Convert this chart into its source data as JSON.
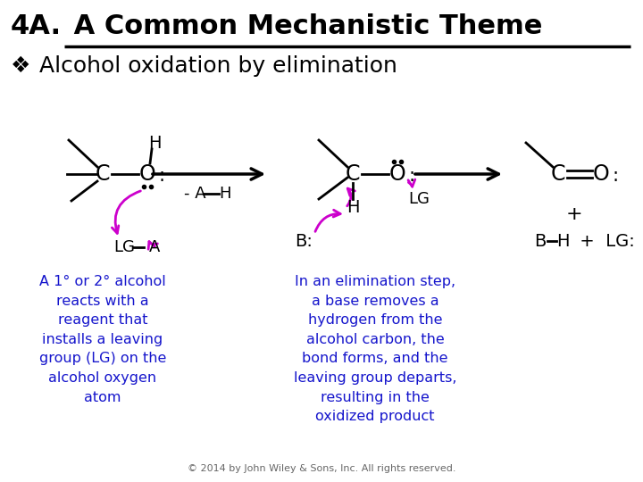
{
  "title_bold": "4A.",
  "title_underline": " A Common Mechanistic Theme",
  "subtitle_bullet": "❖",
  "subtitle_text": " Alcohol oxidation by elimination",
  "text_color_blue": "#1515CC",
  "text_color_black": "#000000",
  "text_color_magenta": "#CC00CC",
  "bg_color": "#FFFFFF",
  "caption1": "A 1° or 2° alcohol\nreacts with a\nreagent that\ninstalls a leaving\ngroup (LG) on the\nalcohol oxygen\natom",
  "caption2": "In an elimination step,\na base removes a\nhydrogen from the\nalcohol carbon, the\nbond forms, and the\nleaving group departs,\nresulting in the\noxidized product",
  "copyright": "© 2014 by John Wiley & Sons, Inc. All rights reserved."
}
